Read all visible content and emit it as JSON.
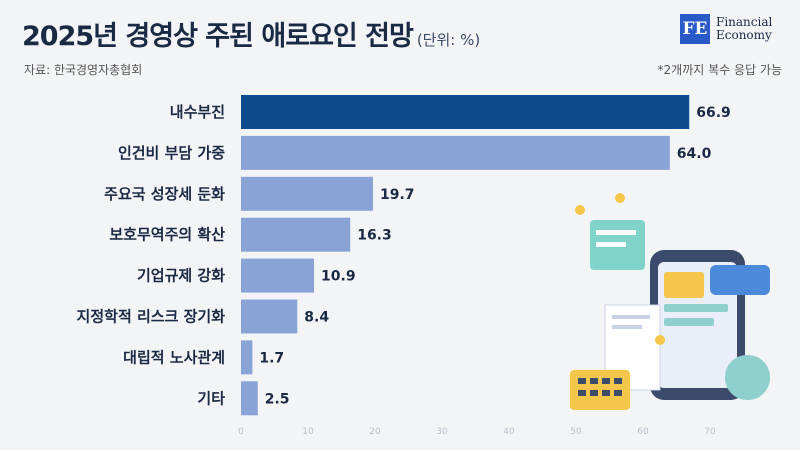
{
  "header": {
    "title": "2025년 경영상 주된 애로요인 전망",
    "unit": "(단위: %)",
    "source": "자료: 한국경영자총협회",
    "note": "*2개까지 복수 응답 가능"
  },
  "logo": {
    "mark": "FE",
    "line1": "Financial",
    "line2": "Economy"
  },
  "colors": {
    "highlight": "#0d4a8c",
    "bar": "#8aa3d6",
    "text": "#1b2a44"
  },
  "chart_data": {
    "type": "bar",
    "orientation": "horizontal",
    "title": "2025년 경영상 주된 애로요인 전망",
    "categories": [
      "내수부진",
      "인건비 부담 가중",
      "주요국 성장세 둔화",
      "보호무역주의 확산",
      "기업규제 강화",
      "지정학적 리스크 장기화",
      "대립적 노사관계",
      "기타"
    ],
    "values": [
      66.9,
      64.0,
      19.7,
      16.3,
      10.9,
      8.4,
      1.7,
      2.5
    ],
    "value_labels": [
      "66.9",
      "64.0",
      "19.7",
      "16.3",
      "10.9",
      "8.4",
      "1.7",
      "2.5"
    ],
    "xlim": [
      0,
      70
    ],
    "ticks": [
      "0",
      "10",
      "20",
      "30",
      "40",
      "50",
      "60",
      "70"
    ],
    "highlight_index": 0,
    "grid": false
  }
}
